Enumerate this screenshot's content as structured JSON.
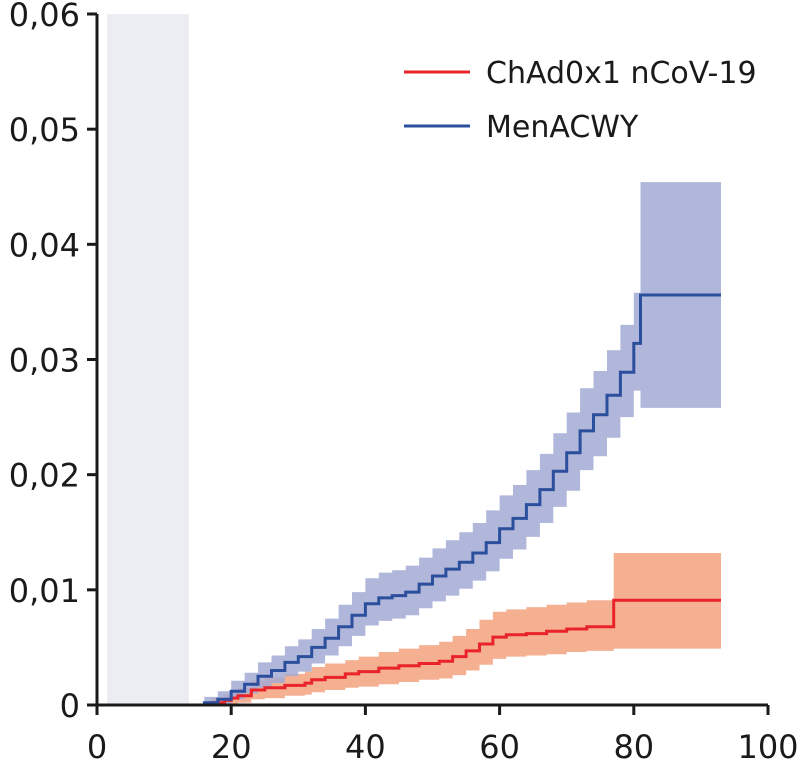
{
  "chart_data": {
    "type": "line",
    "xlim": [
      0,
      100
    ],
    "ylim": [
      0,
      0.06
    ],
    "x_ticks": [
      {
        "value": 0,
        "label": "0"
      },
      {
        "value": 20,
        "label": "20"
      },
      {
        "value": 40,
        "label": "40"
      },
      {
        "value": 60,
        "label": "60"
      },
      {
        "value": 80,
        "label": "80"
      },
      {
        "value": 100,
        "label": "100"
      }
    ],
    "y_ticks": [
      {
        "value": 0,
        "label": "0"
      },
      {
        "value": 0.01,
        "label": "0,01"
      },
      {
        "value": 0.02,
        "label": "0,02"
      },
      {
        "value": 0.03,
        "label": "0,03"
      },
      {
        "value": 0.04,
        "label": "0,04"
      },
      {
        "value": 0.05,
        "label": "0,05"
      },
      {
        "value": 0.06,
        "label": "0,06"
      }
    ],
    "shaded_region": {
      "x": [
        1.5,
        13.7
      ],
      "color": "#ebedf2"
    },
    "grid": false,
    "legend_position": "top-right",
    "series": [
      {
        "name": "ChAd0x1 nCoV-19",
        "color": "#e8232a",
        "band_color": "#f3a27f",
        "x": [
          0,
          14,
          17,
          19,
          20,
          21,
          23,
          25,
          28,
          31,
          32,
          34,
          37,
          39,
          42,
          45,
          48,
          51,
          53,
          55,
          57,
          59,
          61,
          64,
          67,
          70,
          73,
          77,
          80,
          85,
          90,
          93
        ],
        "y": [
          0,
          0,
          0.0002,
          0.0004,
          0.0006,
          0.0008,
          0.0013,
          0.0015,
          0.0017,
          0.0019,
          0.0022,
          0.0024,
          0.0027,
          0.0029,
          0.0032,
          0.0034,
          0.0036,
          0.0038,
          0.0042,
          0.0047,
          0.0053,
          0.0059,
          0.0061,
          0.0062,
          0.0064,
          0.0066,
          0.0068,
          0.0091,
          0.0091,
          0.0091,
          0.0091,
          0.0091
        ],
        "lower": [
          0,
          0,
          0,
          0,
          0,
          0.0002,
          0.0005,
          0.0006,
          0.0008,
          0.0009,
          0.0011,
          0.0013,
          0.0015,
          0.0016,
          0.0018,
          0.002,
          0.0022,
          0.0023,
          0.0026,
          0.003,
          0.0035,
          0.004,
          0.0042,
          0.0043,
          0.0044,
          0.0046,
          0.0047,
          0.0049,
          0.0049,
          0.0049,
          0.0049,
          0.0049
        ],
        "upper": [
          0,
          0,
          0.0006,
          0.0009,
          0.0012,
          0.0015,
          0.0021,
          0.0024,
          0.0027,
          0.0029,
          0.0033,
          0.0036,
          0.0039,
          0.0042,
          0.0046,
          0.0049,
          0.0052,
          0.0055,
          0.006,
          0.0066,
          0.0074,
          0.0081,
          0.0083,
          0.0085,
          0.0087,
          0.0089,
          0.0091,
          0.0132,
          0.0132,
          0.0132,
          0.0132,
          0.0132
        ]
      },
      {
        "name": "MenACWY",
        "color": "#2b4f9c",
        "band_color": "#a3aad4",
        "x": [
          0,
          14,
          16,
          18,
          20,
          22,
          24,
          26,
          28,
          30,
          32,
          34,
          36,
          38,
          40,
          42,
          44,
          46,
          48,
          50,
          52,
          54,
          56,
          58,
          60,
          62,
          64,
          66,
          68,
          70,
          72,
          74,
          76,
          78,
          80,
          81,
          85,
          90,
          93
        ],
        "y": [
          0,
          0,
          0.0002,
          0.0005,
          0.0012,
          0.0018,
          0.0025,
          0.003,
          0.0037,
          0.0042,
          0.005,
          0.0058,
          0.0068,
          0.0078,
          0.0088,
          0.0093,
          0.0095,
          0.0098,
          0.0105,
          0.0112,
          0.0118,
          0.0124,
          0.0132,
          0.0141,
          0.0153,
          0.0162,
          0.0174,
          0.0187,
          0.0203,
          0.0219,
          0.0238,
          0.0252,
          0.0269,
          0.0289,
          0.0314,
          0.0356,
          0.0356,
          0.0356,
          0.0356
        ],
        "lower": [
          0,
          0,
          0,
          0,
          0.0005,
          0.001,
          0.0015,
          0.0019,
          0.0025,
          0.0029,
          0.0036,
          0.0043,
          0.0051,
          0.006,
          0.0069,
          0.0073,
          0.0075,
          0.0078,
          0.0084,
          0.009,
          0.0095,
          0.0101,
          0.0108,
          0.0116,
          0.0127,
          0.0135,
          0.0146,
          0.0158,
          0.0172,
          0.0186,
          0.0204,
          0.0216,
          0.0232,
          0.025,
          0.0273,
          0.0258,
          0.0258,
          0.0258,
          0.0258
        ],
        "upper": [
          0,
          0,
          0.0007,
          0.0012,
          0.0021,
          0.0028,
          0.0037,
          0.0043,
          0.0051,
          0.0057,
          0.0066,
          0.0075,
          0.0087,
          0.0098,
          0.011,
          0.0115,
          0.0117,
          0.0121,
          0.0128,
          0.0136,
          0.0143,
          0.015,
          0.0158,
          0.0169,
          0.0182,
          0.0191,
          0.0204,
          0.0218,
          0.0236,
          0.0254,
          0.0275,
          0.029,
          0.0308,
          0.033,
          0.0358,
          0.0454,
          0.0454,
          0.0454,
          0.0454
        ]
      }
    ]
  }
}
